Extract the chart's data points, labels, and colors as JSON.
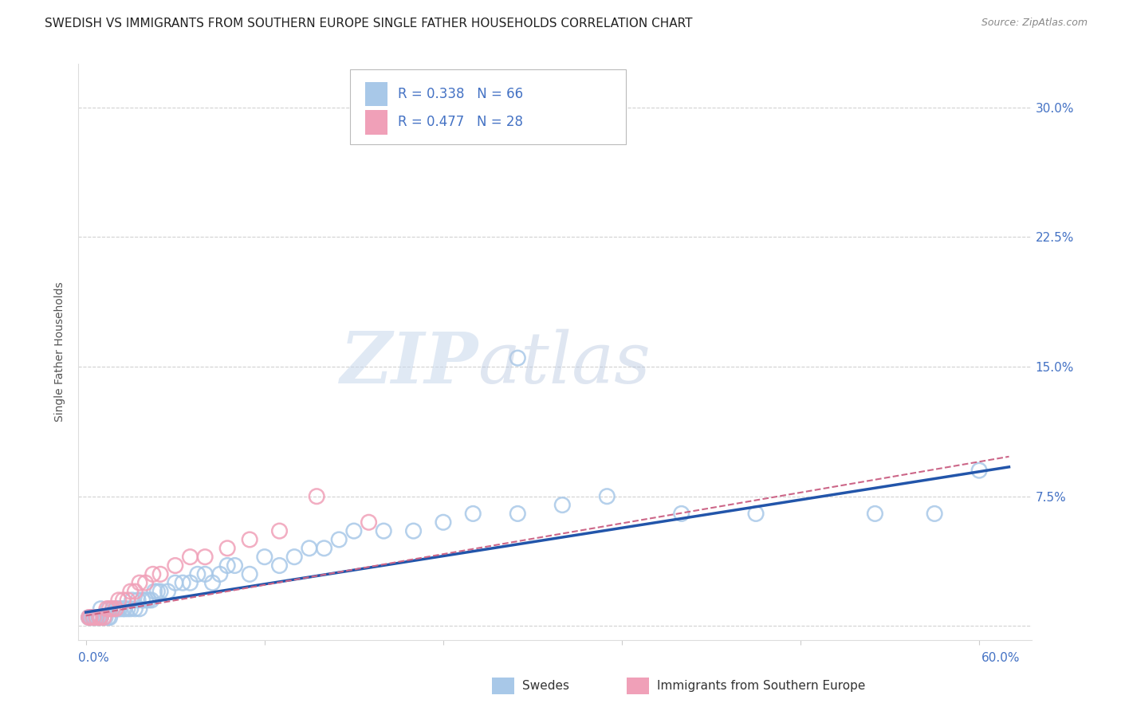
{
  "title": "SWEDISH VS IMMIGRANTS FROM SOUTHERN EUROPE SINGLE FATHER HOUSEHOLDS CORRELATION CHART",
  "source": "Source: ZipAtlas.com",
  "ylabel": "Single Father Households",
  "ytick_vals": [
    0.0,
    0.075,
    0.15,
    0.225,
    0.3
  ],
  "ytick_labels": [
    "",
    "7.5%",
    "15.0%",
    "22.5%",
    "30.0%"
  ],
  "xtick_vals": [
    0.0,
    0.12,
    0.24,
    0.36,
    0.48,
    0.6
  ],
  "xlim": [
    -0.005,
    0.635
  ],
  "ylim": [
    -0.008,
    0.325
  ],
  "blue_color": "#a8c8e8",
  "pink_color": "#f0a0b8",
  "blue_edge_color": "#7aaad0",
  "pink_edge_color": "#e07090",
  "blue_line_color": "#2255aa",
  "pink_line_color": "#cc6688",
  "R_blue": 0.338,
  "N_blue": 66,
  "R_pink": 0.477,
  "N_pink": 28,
  "legend_label_blue": "Swedes",
  "legend_label_pink": "Immigrants from Southern Europe",
  "watermark_zip": "ZIP",
  "watermark_atlas": "atlas",
  "blue_points_x": [
    0.002,
    0.003,
    0.004,
    0.005,
    0.006,
    0.007,
    0.008,
    0.009,
    0.01,
    0.01,
    0.012,
    0.013,
    0.015,
    0.015,
    0.016,
    0.018,
    0.02,
    0.021,
    0.022,
    0.023,
    0.025,
    0.026,
    0.028,
    0.03,
    0.031,
    0.033,
    0.035,
    0.036,
    0.038,
    0.04,
    0.042,
    0.044,
    0.046,
    0.048,
    0.05,
    0.055,
    0.06,
    0.065,
    0.07,
    0.075,
    0.08,
    0.085,
    0.09,
    0.095,
    0.1,
    0.11,
    0.12,
    0.13,
    0.14,
    0.15,
    0.16,
    0.17,
    0.18,
    0.2,
    0.22,
    0.24,
    0.26,
    0.29,
    0.32,
    0.35,
    0.4,
    0.45,
    0.29,
    0.53,
    0.57,
    0.6
  ],
  "blue_points_y": [
    0.005,
    0.005,
    0.005,
    0.005,
    0.005,
    0.005,
    0.005,
    0.005,
    0.005,
    0.01,
    0.005,
    0.005,
    0.005,
    0.01,
    0.005,
    0.01,
    0.01,
    0.01,
    0.01,
    0.01,
    0.01,
    0.01,
    0.01,
    0.01,
    0.015,
    0.01,
    0.015,
    0.01,
    0.015,
    0.015,
    0.015,
    0.015,
    0.02,
    0.02,
    0.02,
    0.02,
    0.025,
    0.025,
    0.025,
    0.03,
    0.03,
    0.025,
    0.03,
    0.035,
    0.035,
    0.03,
    0.04,
    0.035,
    0.04,
    0.045,
    0.045,
    0.05,
    0.055,
    0.055,
    0.055,
    0.06,
    0.065,
    0.065,
    0.07,
    0.075,
    0.065,
    0.065,
    0.155,
    0.065,
    0.065,
    0.09
  ],
  "pink_points_x": [
    0.002,
    0.003,
    0.005,
    0.007,
    0.009,
    0.01,
    0.012,
    0.014,
    0.016,
    0.018,
    0.02,
    0.022,
    0.025,
    0.028,
    0.03,
    0.033,
    0.036,
    0.04,
    0.045,
    0.05,
    0.06,
    0.07,
    0.08,
    0.095,
    0.11,
    0.13,
    0.155,
    0.19
  ],
  "pink_points_y": [
    0.005,
    0.005,
    0.005,
    0.005,
    0.005,
    0.005,
    0.005,
    0.01,
    0.01,
    0.01,
    0.01,
    0.015,
    0.015,
    0.015,
    0.02,
    0.02,
    0.025,
    0.025,
    0.03,
    0.03,
    0.035,
    0.04,
    0.04,
    0.045,
    0.05,
    0.055,
    0.075,
    0.06
  ],
  "blue_line_x0": 0.0,
  "blue_line_x1": 0.62,
  "blue_line_y0": 0.008,
  "blue_line_y1": 0.092,
  "pink_line_x0": 0.0,
  "pink_line_x1": 0.62,
  "pink_line_y0": 0.006,
  "pink_line_y1": 0.098
}
